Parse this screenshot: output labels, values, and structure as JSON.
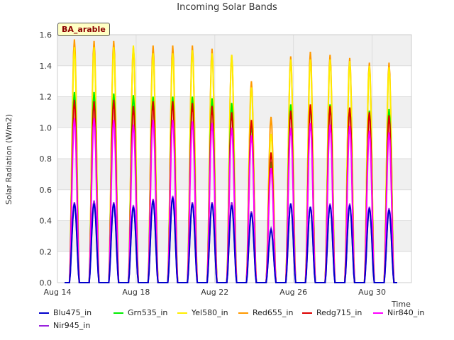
{
  "title": "Incoming Solar Bands",
  "site_label": "BA_arable",
  "chart_data": {
    "type": "line",
    "title": "Incoming Solar Bands",
    "xlabel": "Time",
    "ylabel": "Solar Radiation (W/m2)",
    "ylim": [
      0,
      1.6
    ],
    "y_ticks": [
      "0.0",
      "0.2",
      "0.4",
      "0.6",
      "0.8",
      "1.0",
      "1.2",
      "1.4",
      "1.6"
    ],
    "x_ticks": [
      "Aug 14",
      "Aug 18",
      "Aug 22",
      "Aug 26",
      "Aug 30"
    ],
    "grid": true,
    "legend_position": "bottom",
    "days": [
      "Aug 14",
      "Aug 15",
      "Aug 16",
      "Aug 17",
      "Aug 18",
      "Aug 19",
      "Aug 20",
      "Aug 21",
      "Aug 22",
      "Aug 23",
      "Aug 24",
      "Aug 25",
      "Aug 26",
      "Aug 27",
      "Aug 28",
      "Aug 29",
      "Aug 30",
      "Aug 31"
    ],
    "series": [
      {
        "name": "Blu475_in",
        "color": "#0000cc",
        "daily_peak": [
          0.51,
          0.51,
          0.51,
          0.49,
          0.53,
          0.55,
          0.51,
          0.51,
          0.5,
          0.45,
          0.34,
          0.51,
          0.49,
          0.5,
          0.5,
          0.48,
          0.47,
          0.0
        ]
      },
      {
        "name": "Grn535_in",
        "color": "#00ee00",
        "daily_peak": [
          1.23,
          1.23,
          1.22,
          1.21,
          1.2,
          1.2,
          1.2,
          1.19,
          1.16,
          1.02,
          0.78,
          1.15,
          1.14,
          1.15,
          1.13,
          1.11,
          1.12,
          0.0
        ]
      },
      {
        "name": "Yel580_in",
        "color": "#ffee00",
        "daily_peak": [
          1.52,
          1.52,
          1.52,
          1.53,
          1.48,
          1.48,
          1.5,
          1.48,
          1.47,
          1.26,
          0.96,
          1.44,
          1.44,
          1.44,
          1.43,
          1.4,
          1.39,
          0.0
        ]
      },
      {
        "name": "Red655_in",
        "color": "#ff9900",
        "daily_peak": [
          1.57,
          1.56,
          1.56,
          1.52,
          1.53,
          1.53,
          1.53,
          1.51,
          1.47,
          1.3,
          1.07,
          1.46,
          1.49,
          1.47,
          1.45,
          1.42,
          1.42,
          0.0
        ]
      },
      {
        "name": "Redg715_in",
        "color": "#dd0000",
        "daily_peak": [
          1.18,
          1.17,
          1.18,
          1.14,
          1.17,
          1.17,
          1.16,
          1.14,
          1.1,
          1.05,
          0.84,
          1.11,
          1.15,
          1.14,
          1.13,
          1.1,
          1.08,
          0.0
        ]
      },
      {
        "name": "Nir840_in",
        "color": "#ff00ff",
        "daily_peak": [
          1.06,
          1.06,
          1.05,
          1.02,
          1.05,
          1.05,
          1.04,
          1.03,
          1.0,
          0.95,
          0.74,
          1.0,
          1.03,
          1.02,
          1.01,
          0.98,
          0.97,
          0.0
        ]
      },
      {
        "name": "Nir945_in",
        "color": "#9922dd",
        "daily_peak": [
          0.52,
          0.53,
          0.52,
          0.5,
          0.54,
          0.56,
          0.52,
          0.52,
          0.52,
          0.46,
          0.35,
          0.51,
          0.49,
          0.51,
          0.51,
          0.49,
          0.48,
          0.0
        ]
      }
    ]
  }
}
